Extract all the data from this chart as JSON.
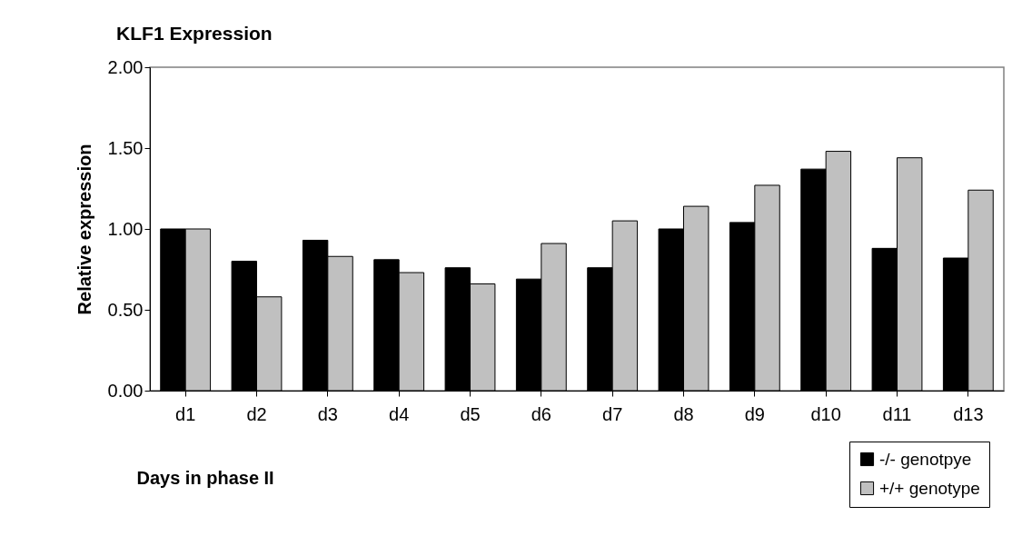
{
  "chart_data": {
    "type": "bar",
    "title": "KLF1 Expression",
    "xlabel": "Days in phase II",
    "ylabel": "Relative expression",
    "categories": [
      "d1",
      "d2",
      "d3",
      "d4",
      "d5",
      "d6",
      "d7",
      "d8",
      "d9",
      "d10",
      "d11",
      "d13"
    ],
    "series": [
      {
        "name": "-/- genotpye",
        "color": "#000000",
        "values": [
          1.0,
          0.8,
          0.93,
          0.81,
          0.76,
          0.69,
          0.76,
          1.0,
          1.04,
          1.37,
          0.88,
          0.82
        ]
      },
      {
        "name": "+/+ genotype",
        "color": "#c0c0c0",
        "values": [
          1.0,
          0.58,
          0.83,
          0.73,
          0.66,
          0.91,
          1.05,
          1.14,
          1.27,
          1.48,
          1.44,
          1.24
        ]
      }
    ],
    "ylim": [
      0,
      2
    ],
    "yticks": [
      {
        "value": 0,
        "label": "0.00"
      },
      {
        "value": 0.5,
        "label": "0.50"
      },
      {
        "value": 1,
        "label": "1.00"
      },
      {
        "value": 1.5,
        "label": "1.50"
      },
      {
        "value": 2,
        "label": "2.00"
      }
    ],
    "grid": false,
    "legend": "bottom right"
  }
}
